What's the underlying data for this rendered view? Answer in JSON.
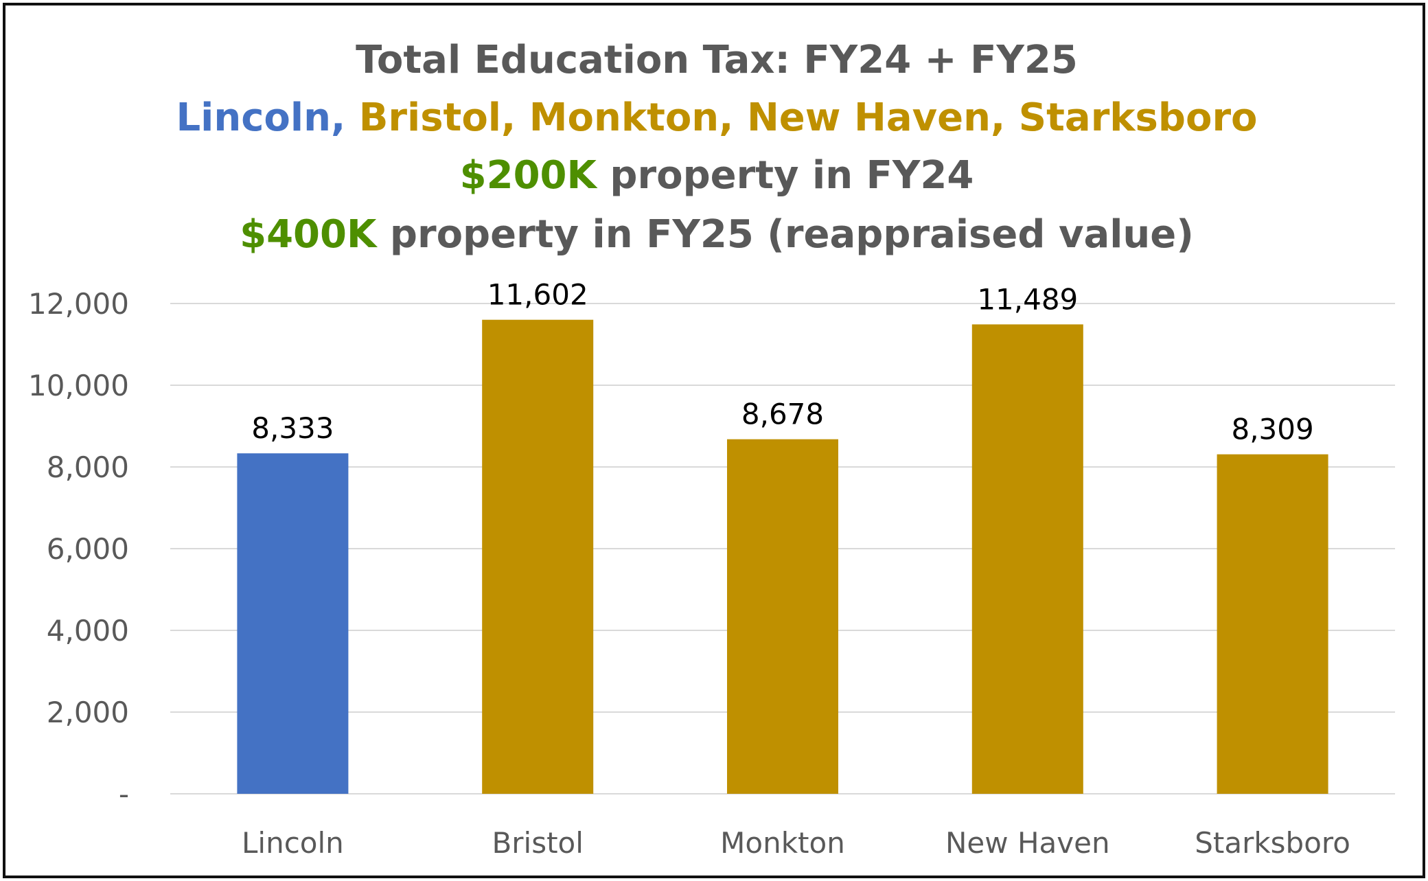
{
  "title": {
    "line1": "Total Education Tax: FY24 + FY25",
    "line2_part_lincoln": "Lincoln,",
    "line2_part_others": "Bristol, Monkton, New Haven, Starksboro",
    "line3_amount": "$200K",
    "line3_rest": "property in FY24",
    "line4_amount": "$400K",
    "line4_rest": "property in FY25 (reappraised value)"
  },
  "colors": {
    "title_gray": "#595959",
    "lincoln_blue": "#4472C4",
    "others_gold": "#BF9000",
    "amount_green": "#4E8F00",
    "gridline": "#D9D9D9"
  },
  "chart_data": {
    "type": "bar",
    "categories": [
      "Lincoln",
      "Bristol",
      "Monkton",
      "New Haven",
      "Starksboro"
    ],
    "values": [
      8333,
      11602,
      8678,
      11489,
      8309
    ],
    "value_labels": [
      "8,333",
      "11,602",
      "8,678",
      "11,489",
      "8,309"
    ],
    "bar_colors": [
      "#4472C4",
      "#BF9000",
      "#BF9000",
      "#BF9000",
      "#BF9000"
    ],
    "ylim": [
      0,
      12000
    ],
    "yticks": [
      0,
      2000,
      4000,
      6000,
      8000,
      10000,
      12000
    ],
    "ytick_labels": [
      "-",
      "2,000",
      "4,000",
      "6,000",
      "8,000",
      "10,000",
      "12,000"
    ],
    "grid": true,
    "legend": "none"
  }
}
